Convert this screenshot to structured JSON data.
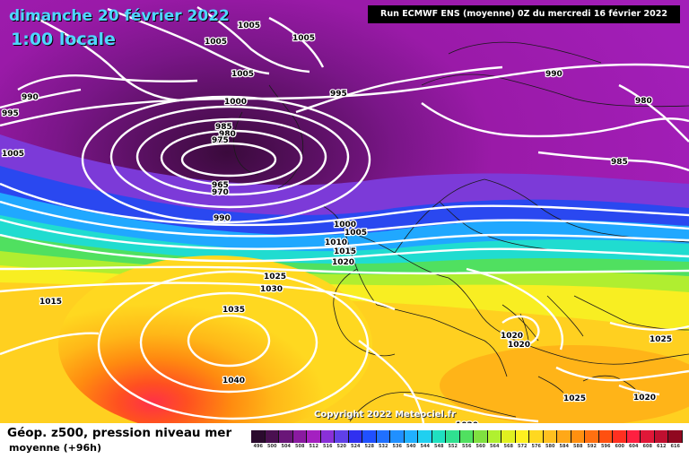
{
  "title": {
    "date": "dimanche 20 février 2022",
    "time": "1:00 locale"
  },
  "run_info": "Run ECMWF ENS (moyenne) 0Z du mercredi 16 février 2022",
  "copyright": "Copyright 2022 Meteociel.fr",
  "legend": {
    "title": "Géop. z500, pression niveau mer",
    "subtitle": "moyenne   (+96h)",
    "scale_values": [
      "496",
      "500",
      "504",
      "508",
      "512",
      "516",
      "520",
      "524",
      "528",
      "532",
      "536",
      "540",
      "544",
      "548",
      "552",
      "556",
      "560",
      "564",
      "568",
      "572",
      "576",
      "580",
      "584",
      "588",
      "592",
      "596",
      "600",
      "604",
      "608",
      "612",
      "616"
    ],
    "scale_colors": [
      "#2b0a2e",
      "#4a1050",
      "#6a1678",
      "#8a1aa0",
      "#a420c0",
      "#8a30d8",
      "#6040e8",
      "#3030f0",
      "#2050ff",
      "#2070ff",
      "#2090ff",
      "#20b0ff",
      "#20d0f0",
      "#20e0c0",
      "#30e090",
      "#50e060",
      "#80e040",
      "#b0f030",
      "#e0f020",
      "#fff020",
      "#ffd820",
      "#ffc020",
      "#ffa818",
      "#ff9010",
      "#ff7010",
      "#ff5010",
      "#ff3020",
      "#ff2040",
      "#e01838",
      "#c01030",
      "#900820"
    ]
  },
  "isobars": [
    {
      "value": "1005",
      "pos": "label"
    },
    {
      "value": "1005",
      "pos": "label"
    },
    {
      "value": "1005",
      "pos": "label"
    },
    {
      "value": "990",
      "pos": "label"
    },
    {
      "value": "995",
      "pos": "label"
    },
    {
      "value": "1005",
      "pos": "label"
    },
    {
      "value": "1000",
      "pos": "label"
    },
    {
      "value": "995",
      "pos": "label"
    },
    {
      "value": "990",
      "pos": "label"
    },
    {
      "value": "980",
      "pos": "label"
    },
    {
      "value": "985",
      "pos": "label"
    },
    {
      "value": "980",
      "pos": "label"
    },
    {
      "value": "975",
      "pos": "label"
    },
    {
      "value": "1005",
      "pos": "label"
    },
    {
      "value": "965",
      "pos": "label"
    },
    {
      "value": "970",
      "pos": "label"
    },
    {
      "value": "985",
      "pos": "label"
    },
    {
      "value": "990",
      "pos": "label"
    },
    {
      "value": "1000",
      "pos": "label"
    },
    {
      "value": "1005",
      "pos": "label"
    },
    {
      "value": "1010",
      "pos": "label"
    },
    {
      "value": "1015",
      "pos": "label"
    },
    {
      "value": "1020",
      "pos": "label"
    },
    {
      "value": "1025",
      "pos": "label"
    },
    {
      "value": "1030",
      "pos": "label"
    },
    {
      "value": "1015",
      "pos": "label"
    },
    {
      "value": "1035",
      "pos": "label"
    },
    {
      "value": "1040",
      "pos": "label"
    },
    {
      "value": "1020",
      "pos": "label"
    },
    {
      "value": "1020",
      "pos": "label"
    },
    {
      "value": "1025",
      "pos": "label"
    },
    {
      "value": "1025",
      "pos": "label"
    },
    {
      "value": "1020",
      "pos": "label"
    },
    {
      "value": "1020",
      "pos": "label"
    }
  ]
}
